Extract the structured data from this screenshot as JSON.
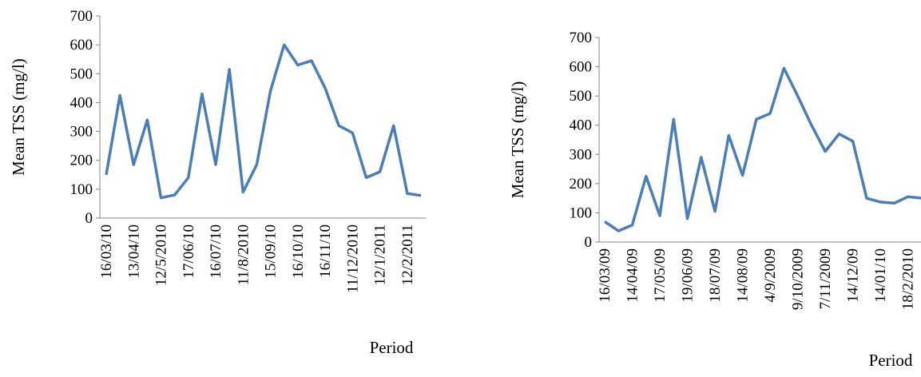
{
  "chart_data": [
    {
      "type": "line",
      "y_label": "Mean TSS (mg/l)",
      "x_label": "Period",
      "categories": [
        "16/03/10",
        null,
        "13/04/10",
        null,
        "12/5/2010",
        null,
        "17/06/10",
        null,
        "16/07/10",
        null,
        "11/8/2010",
        null,
        "15/09/10",
        null,
        "16/10/10",
        null,
        "16/11/10",
        null,
        "11/12/2010",
        null,
        "12/1/2011",
        null,
        "12/2/2011",
        null
      ],
      "series": [
        {
          "color": "#4a7ebb",
          "values": [
            150,
            425,
            185,
            340,
            70,
            80,
            140,
            430,
            185,
            515,
            90,
            185,
            440,
            600,
            530,
            545,
            450,
            320,
            295,
            140,
            160,
            320,
            85,
            78
          ]
        }
      ],
      "ylim": [
        0,
        700
      ],
      "yticks": [
        0,
        100,
        200,
        300,
        400,
        500,
        600,
        700
      ]
    },
    {
      "type": "line",
      "y_label": "Mean TSS (mg/l)",
      "x_label": "Period",
      "categories": [
        "16/03/09",
        null,
        "14/04/09",
        null,
        "17/05/09",
        null,
        "19/06/09",
        null,
        "18/07/09",
        null,
        "14/08/09",
        null,
        "4/9/2009",
        null,
        "9/10/2009",
        null,
        "7/11/2009",
        null,
        "14/12/09",
        null,
        "14/01/10",
        null,
        "18/2/2010",
        null
      ],
      "series": [
        {
          "color": "#4a7ebb",
          "values": [
            70,
            38,
            58,
            225,
            90,
            420,
            80,
            290,
            105,
            365,
            228,
            420,
            440,
            595,
            500,
            400,
            310,
            370,
            345,
            150,
            137,
            133,
            155,
            150
          ]
        }
      ],
      "ylim": [
        0,
        700
      ],
      "yticks": [
        0,
        100,
        200,
        300,
        400,
        500,
        600,
        700
      ]
    }
  ]
}
